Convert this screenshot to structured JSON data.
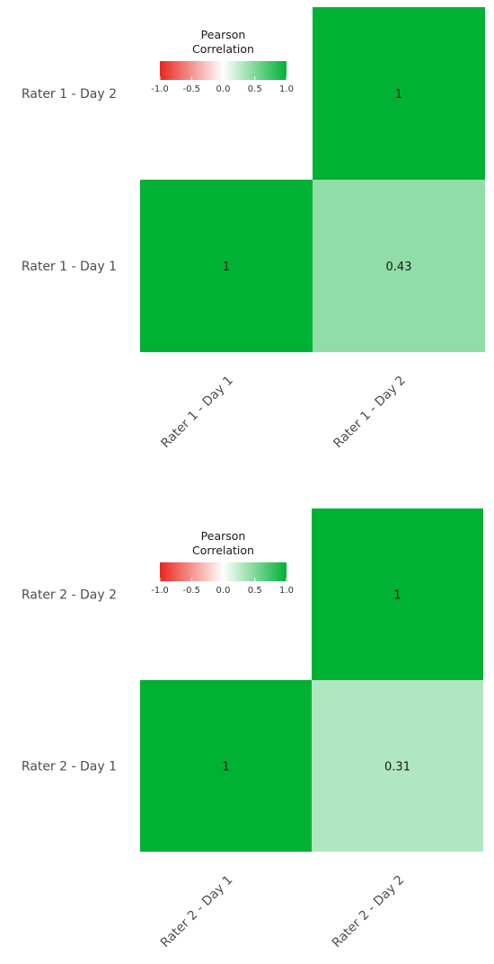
{
  "chart_data": [
    {
      "type": "heatmap",
      "legend": {
        "title": [
          "Pearson",
          "Correlation"
        ],
        "ticks": [
          "-1.0",
          "-0.5",
          "0.0",
          "0.5",
          "1.0"
        ],
        "placement": "top-left"
      },
      "y_categories": [
        "Rater 1 - Day 1",
        "Rater 1 - Day 2"
      ],
      "x_categories": [
        "Rater 1 - Day 1",
        "Rater 1 - Day 2"
      ],
      "cells": [
        {
          "x": "Rater 1 - Day 1",
          "y": "Rater 1 - Day 1",
          "value": 1,
          "label": "1"
        },
        {
          "x": "Rater 1 - Day 2",
          "y": "Rater 1 - Day 1",
          "value": 0.43,
          "label": "0.43"
        },
        {
          "x": "Rater 1 - Day 2",
          "y": "Rater 1 - Day 2",
          "value": 1,
          "label": "1"
        }
      ],
      "color_scale": {
        "min": -1,
        "max": 1,
        "low": "#e8281f",
        "mid": "#ffffff",
        "high": "#00b134"
      }
    },
    {
      "type": "heatmap",
      "legend": {
        "title": [
          "Pearson",
          "Correlation"
        ],
        "ticks": [
          "-1.0",
          "-0.5",
          "0.0",
          "0.5",
          "1.0"
        ],
        "placement": "top-left"
      },
      "y_categories": [
        "Rater 2 - Day 1",
        "Rater 2 - Day 2"
      ],
      "x_categories": [
        "Rater 2 - Day 1",
        "Rater 2 - Day 2"
      ],
      "cells": [
        {
          "x": "Rater 2 - Day 1",
          "y": "Rater 2 - Day 1",
          "value": 1,
          "label": "1"
        },
        {
          "x": "Rater 2 - Day 2",
          "y": "Rater 2 - Day 1",
          "value": 0.31,
          "label": "0.31"
        },
        {
          "x": "Rater 2 - Day 2",
          "y": "Rater 2 - Day 2",
          "value": 1,
          "label": "1"
        }
      ],
      "color_scale": {
        "min": -1,
        "max": 1,
        "low": "#e8281f",
        "mid": "#ffffff",
        "high": "#00b134"
      }
    }
  ]
}
